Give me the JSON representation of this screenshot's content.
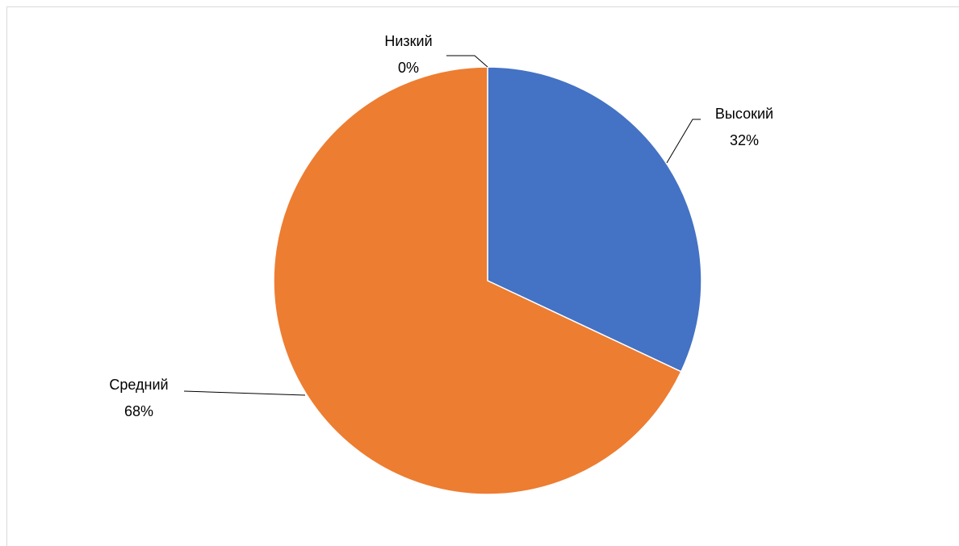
{
  "chart_data": {
    "type": "pie",
    "title": "",
    "categories": [
      "Высокий",
      "Средний",
      "Низкий"
    ],
    "values": [
      32,
      68,
      0
    ],
    "value_labels": [
      "32%",
      "68%",
      "0%"
    ],
    "colors": [
      "#4472C4",
      "#ED7D31",
      "#A5A5A5"
    ],
    "legend": "none",
    "data_labels": "outside-with-leader-lines"
  }
}
